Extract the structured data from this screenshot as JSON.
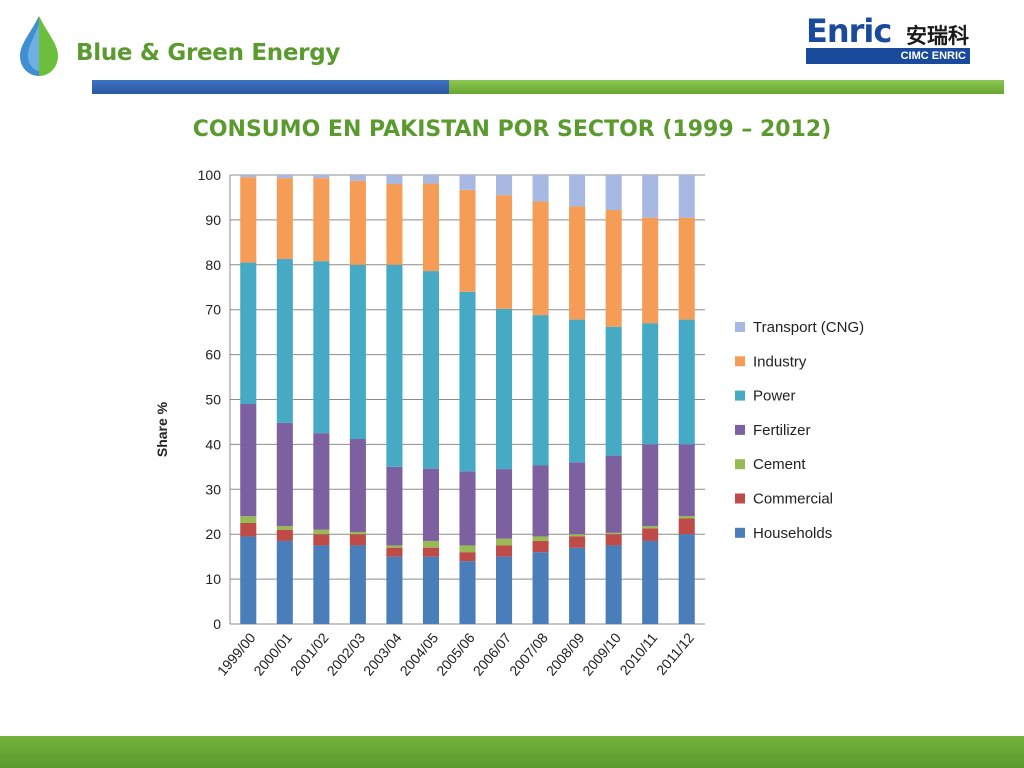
{
  "header": {
    "brand_name": "Blue & Green Energy",
    "partner_logo": {
      "word": "Enric",
      "chinese": "安瑞科",
      "band": "CIMC ENRIC"
    }
  },
  "slide_title": "CONSUMO EN PAKISTAN POR SECTOR (1999 – 2012)",
  "colors": {
    "brand_green": "#5a9a2e",
    "brand_blue": "#2b57a0"
  },
  "chart_data": {
    "type": "bar",
    "stacked": true,
    "title": "",
    "xlabel": "",
    "ylabel": "Share %",
    "ylim": [
      0,
      100
    ],
    "yticks": [
      0,
      10,
      20,
      30,
      40,
      50,
      60,
      70,
      80,
      90,
      100
    ],
    "grid": true,
    "legend_position": "right",
    "categories": [
      "1999/00",
      "2000/01",
      "2001/02",
      "2002/03",
      "2003/04",
      "2004/05",
      "2005/06",
      "2006/07",
      "2007/08",
      "2008/09",
      "2009/10",
      "2010/11",
      "2011/12"
    ],
    "series": [
      {
        "name": "Households",
        "color": "#4a7ebb",
        "values": [
          19.5,
          18.5,
          17.5,
          17.5,
          15,
          15,
          14,
          15,
          16,
          17,
          17.5,
          18.5,
          20
        ]
      },
      {
        "name": "Commercial",
        "color": "#be4b48",
        "values": [
          3,
          2.5,
          2.5,
          2.5,
          2,
          2,
          2,
          2.5,
          2.5,
          2.5,
          2.5,
          2.8,
          3.5
        ]
      },
      {
        "name": "Cement",
        "color": "#98b954",
        "values": [
          1.5,
          0.8,
          1,
          0.5,
          0.5,
          1.5,
          1.5,
          1.5,
          1,
          0.5,
          0.3,
          0.5,
          0.5
        ]
      },
      {
        "name": "Fertilizer",
        "color": "#7d60a0",
        "values": [
          25,
          23,
          21.5,
          20.7,
          17.5,
          16.1,
          16.5,
          15.5,
          15.8,
          16,
          17.2,
          18.2,
          16
        ]
      },
      {
        "name": "Power",
        "color": "#46aac5",
        "values": [
          31.5,
          36.5,
          38.3,
          38.8,
          45,
          44,
          40,
          35.7,
          33.5,
          31.8,
          28.7,
          27,
          27.8
        ]
      },
      {
        "name": "Industry",
        "color": "#f59d56",
        "values": [
          19,
          18,
          18.5,
          18.7,
          18,
          19.5,
          22.7,
          25.3,
          25.3,
          25.2,
          26,
          23.5,
          22.7
        ]
      },
      {
        "name": "Transport (CNG)",
        "color": "#a7b9e3",
        "values": [
          0.5,
          0.7,
          0.7,
          1.3,
          2,
          1.9,
          3.3,
          4.5,
          5.9,
          7,
          7.8,
          9.5,
          9.5
        ]
      }
    ]
  }
}
